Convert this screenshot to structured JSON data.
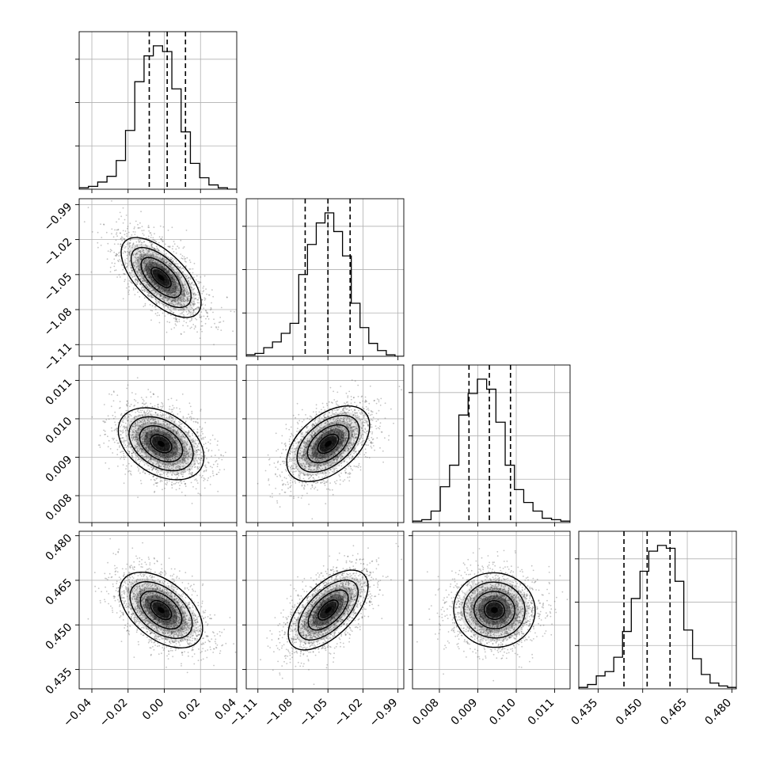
{
  "chart_data": {
    "type": "corner",
    "title": "",
    "parameters": [
      {
        "ticks": [
          -0.04,
          -0.02,
          0.0,
          0.02,
          0.04
        ],
        "tick_labels": [
          "−0.04",
          "−0.02",
          "0.00",
          "0.02",
          "0.04"
        ],
        "range": [
          -0.047,
          0.04
        ],
        "quantiles": [
          -0.0083,
          0.0016,
          0.0117
        ]
      },
      {
        "ticks": [
          -1.11,
          -1.08,
          -1.05,
          -1.02,
          -0.99
        ],
        "tick_labels": [
          "−1.11",
          "−1.08",
          "−1.05",
          "−1.02",
          "−0.99"
        ],
        "range": [
          -1.12,
          -0.985
        ],
        "quantiles": [
          -1.0695,
          -1.05,
          -1.031
        ]
      },
      {
        "ticks": [
          0.008,
          0.009,
          0.01,
          0.011
        ],
        "tick_labels": [
          "0.008",
          "0.009",
          "0.010",
          "0.011"
        ],
        "range": [
          0.0073,
          0.0114
        ],
        "quantiles": [
          0.00877,
          0.0093,
          0.00985
        ]
      },
      {
        "ticks": [
          0.435,
          0.45,
          0.465,
          0.48
        ],
        "tick_labels": [
          "0.435",
          "0.450",
          "0.465",
          "0.480"
        ],
        "range": [
          0.4285,
          0.4815
        ],
        "quantiles": [
          0.4437,
          0.4515,
          0.4592
        ]
      }
    ],
    "histograms": [
      [
        0.01,
        0.02,
        0.05,
        0.09,
        0.2,
        0.41,
        0.75,
        0.93,
        1.0,
        0.96,
        0.7,
        0.4,
        0.18,
        0.08,
        0.03,
        0.01,
        0.0
      ],
      [
        0.01,
        0.02,
        0.06,
        0.1,
        0.16,
        0.23,
        0.57,
        0.78,
        0.93,
        1.0,
        0.87,
        0.7,
        0.37,
        0.2,
        0.09,
        0.04,
        0.01,
        0.0
      ],
      [
        0.01,
        0.02,
        0.08,
        0.25,
        0.4,
        0.75,
        0.9,
        1.0,
        0.93,
        0.7,
        0.4,
        0.23,
        0.14,
        0.08,
        0.03,
        0.02,
        0.01
      ],
      [
        0.01,
        0.03,
        0.09,
        0.12,
        0.22,
        0.4,
        0.63,
        0.82,
        0.96,
        1.0,
        0.98,
        0.75,
        0.41,
        0.21,
        0.1,
        0.04,
        0.02,
        0.01
      ]
    ],
    "pair_correlations": [
      {
        "row": 1,
        "col": 0,
        "rho": -0.72
      },
      {
        "row": 2,
        "col": 0,
        "rho": -0.45
      },
      {
        "row": 2,
        "col": 1,
        "rho": 0.55
      },
      {
        "row": 3,
        "col": 0,
        "rho": -0.55
      },
      {
        "row": 3,
        "col": 1,
        "rho": 0.68
      },
      {
        "row": 3,
        "col": 2,
        "rho": -0.1
      }
    ],
    "contour_levels": [
      0.5,
      1.0,
      1.5,
      2.0
    ],
    "grid": true,
    "colors": {
      "hist": "#000000",
      "points": "#555555",
      "contour": "#000000",
      "density": "#000000",
      "grid": "#b0b0b0"
    }
  }
}
